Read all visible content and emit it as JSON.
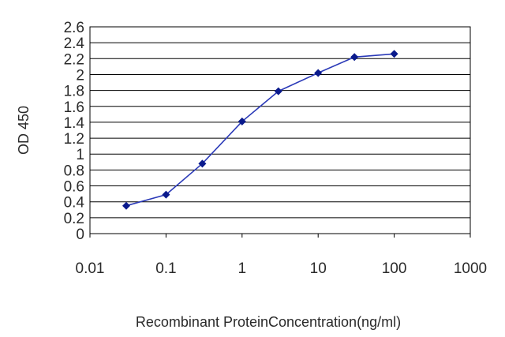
{
  "chart_data": {
    "type": "line",
    "title": "",
    "xlabel": "Recombinant ProteinConcentration(ng/ml)",
    "ylabel": "OD 450",
    "x_scale": "log",
    "xlim": [
      0.01,
      1000
    ],
    "ylim": [
      0,
      2.6
    ],
    "x_ticks": [
      "0.01",
      "0.1",
      "1",
      "10",
      "100",
      "1000"
    ],
    "y_ticks": [
      "0",
      "0.2",
      "0.4",
      "0.6",
      "0.8",
      "1",
      "1.2",
      "1.4",
      "1.6",
      "1.8",
      "2",
      "2.2",
      "2.4",
      "2.6"
    ],
    "grid": "horizontal",
    "line_color": "#2b3ab8",
    "marker_color": "#0a1a8c",
    "series": [
      {
        "x": [
          0.03,
          0.1,
          0.3,
          1,
          3,
          10,
          30,
          100
        ],
        "y": [
          0.35,
          0.49,
          0.88,
          1.41,
          1.79,
          2.02,
          2.22,
          2.26
        ]
      }
    ]
  }
}
